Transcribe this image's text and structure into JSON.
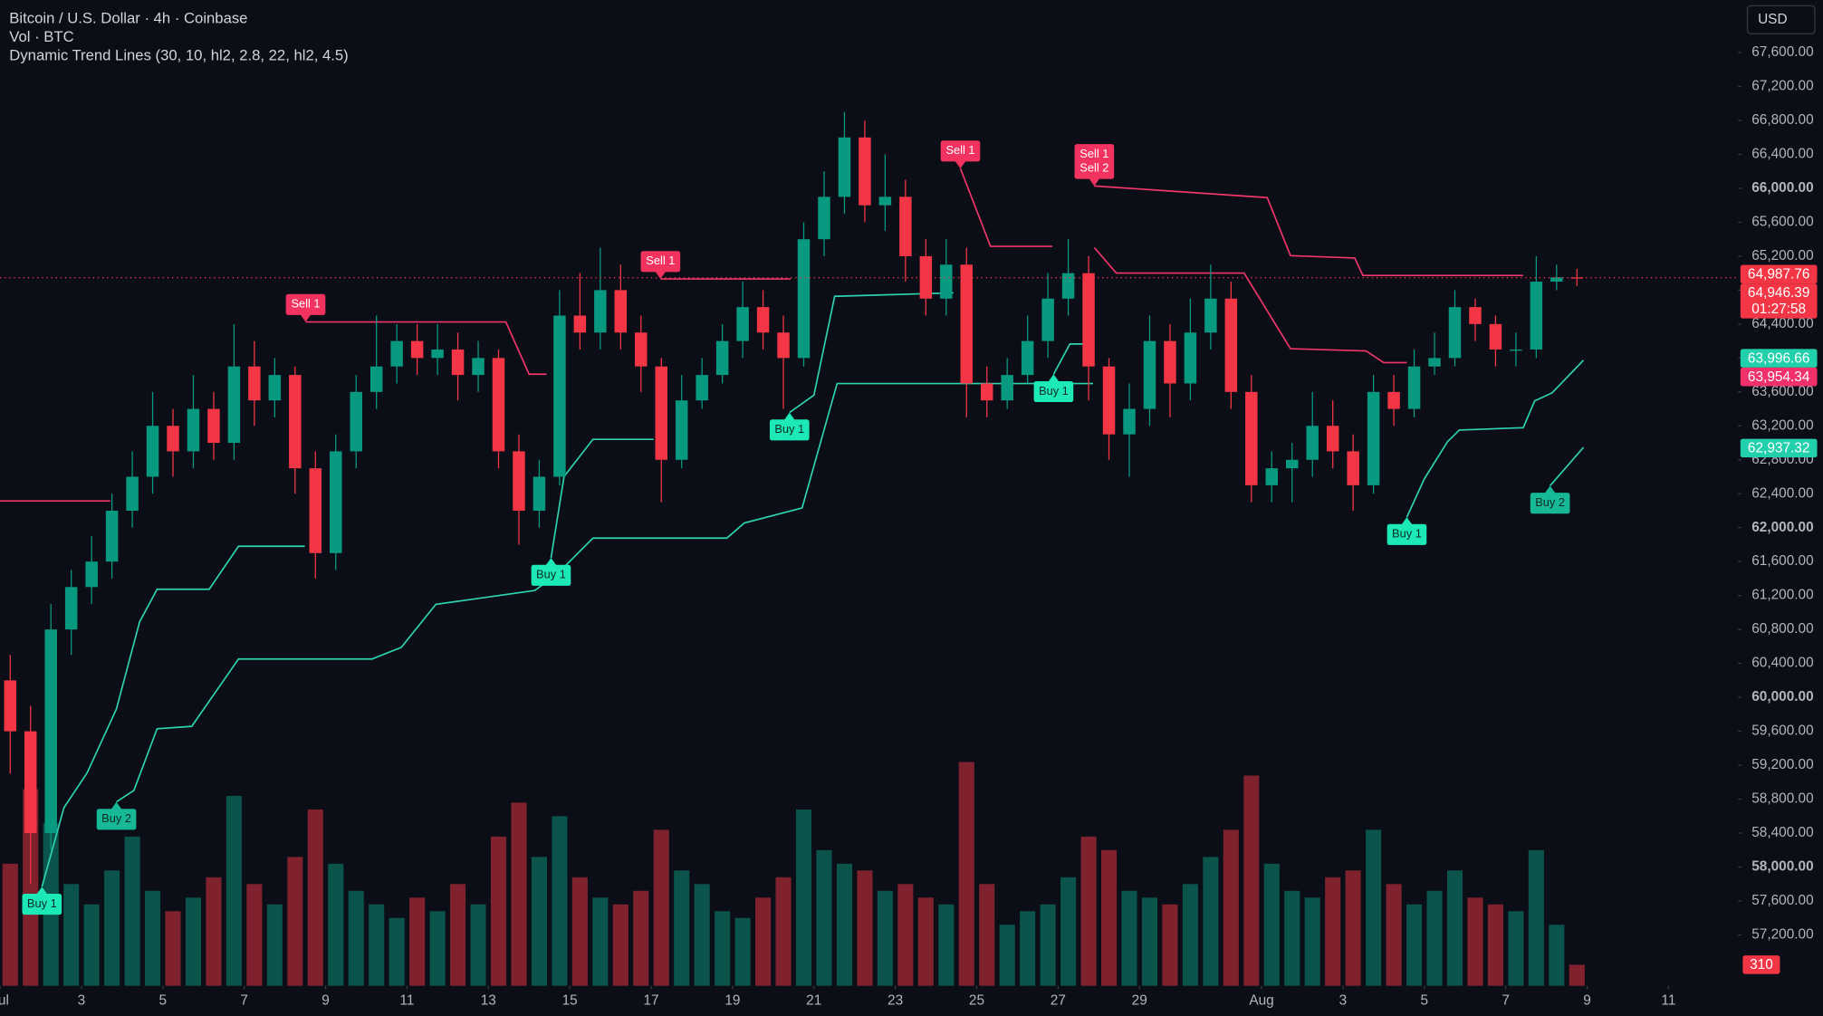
{
  "chart_data": {
    "type": "candlestick",
    "title": "Bitcoin / U.S. Dollar · 4h · Coinbase",
    "subtitle": "Vol · BTC",
    "indicator": "Dynamic Trend Lines (30, 10, hl2, 2.8, 22, hl2, 4.5)",
    "currency": "USD",
    "up_color": "#089981",
    "down_color": "#f23645",
    "xlim": [
      0,
      42.71
    ],
    "ylim": [
      56600,
      68220
    ],
    "xticks": [
      {
        "value": 0,
        "label": "Jul"
      },
      {
        "value": 2,
        "label": "3"
      },
      {
        "value": 4,
        "label": "5"
      },
      {
        "value": 6,
        "label": "7"
      },
      {
        "value": 8,
        "label": "9"
      },
      {
        "value": 10,
        "label": "11"
      },
      {
        "value": 12,
        "label": "13"
      },
      {
        "value": 14,
        "label": "15"
      },
      {
        "value": 16,
        "label": "17"
      },
      {
        "value": 18,
        "label": "19"
      },
      {
        "value": 20,
        "label": "21"
      },
      {
        "value": 22,
        "label": "23"
      },
      {
        "value": 24,
        "label": "25"
      },
      {
        "value": 26,
        "label": "27"
      },
      {
        "value": 28,
        "label": "29"
      },
      {
        "value": 31,
        "label": "Aug"
      },
      {
        "value": 33,
        "label": "3"
      },
      {
        "value": 35,
        "label": "5"
      },
      {
        "value": 37,
        "label": "7"
      },
      {
        "value": 39,
        "label": "9"
      },
      {
        "value": 41,
        "label": "11"
      }
    ],
    "yticks": [
      {
        "value": 57200,
        "label": "57,200.00"
      },
      {
        "value": 57600,
        "label": "57,600.00"
      },
      {
        "value": 58000,
        "label": "58,000.00"
      },
      {
        "value": 58400,
        "label": "58,400.00"
      },
      {
        "value": 58800,
        "label": "58,800.00"
      },
      {
        "value": 59200,
        "label": "59,200.00"
      },
      {
        "value": 59600,
        "label": "59,600.00"
      },
      {
        "value": 60000,
        "label": "60,000.00"
      },
      {
        "value": 60400,
        "label": "60,400.00"
      },
      {
        "value": 60800,
        "label": "60,800.00"
      },
      {
        "value": 61200,
        "label": "61,200.00"
      },
      {
        "value": 61600,
        "label": "61,600.00"
      },
      {
        "value": 62000,
        "label": "62,000.00"
      },
      {
        "value": 62400,
        "label": "62,400.00"
      },
      {
        "value": 62800,
        "label": "62,800.00"
      },
      {
        "value": 63200,
        "label": "63,200.00"
      },
      {
        "value": 63600,
        "label": "63,600.00"
      },
      {
        "value": 64000,
        "label": "64,000.00"
      },
      {
        "value": 64400,
        "label": "64,400.00"
      },
      {
        "value": 64800,
        "label": "64,800.00"
      },
      {
        "value": 65200,
        "label": "65,200.00"
      },
      {
        "value": 65600,
        "label": "65,600.00"
      },
      {
        "value": 66000,
        "label": "66,000.00"
      },
      {
        "value": 66400,
        "label": "66,400.00"
      },
      {
        "value": 66800,
        "label": "66,800.00"
      },
      {
        "value": 67200,
        "label": "67,200.00"
      },
      {
        "value": 67600,
        "label": "67,600.00"
      }
    ],
    "x": [
      0.25,
      0.75,
      1.25,
      1.75,
      2.25,
      2.75,
      3.25,
      3.75,
      4.25,
      4.75,
      5.25,
      5.75,
      6.25,
      6.75,
      7.25,
      7.75,
      8.25,
      8.75,
      9.25,
      9.75,
      10.25,
      10.75,
      11.25,
      11.75,
      12.25,
      12.75,
      13.25,
      13.75,
      14.25,
      14.75,
      15.25,
      15.75,
      16.25,
      16.75,
      17.25,
      17.75,
      18.25,
      18.75,
      19.25,
      19.75,
      20.25,
      20.75,
      21.25,
      21.75,
      22.25,
      22.75,
      23.25,
      23.75,
      24.25,
      24.75,
      25.25,
      25.75,
      26.25,
      26.75,
      27.25,
      27.75,
      28.25,
      28.75,
      29.25,
      29.75,
      30.25,
      30.75,
      31.25,
      31.75,
      32.25,
      32.75,
      33.25,
      33.75,
      34.25,
      34.75,
      35.25,
      35.75,
      36.25,
      36.75,
      37.25,
      37.75,
      38.25,
      38.75
    ],
    "candles": {
      "open": [
        60200,
        59600,
        58400,
        60800,
        61300,
        61600,
        62200,
        62600,
        63200,
        62900,
        63400,
        63000,
        63900,
        63500,
        63800,
        62700,
        61700,
        62900,
        63600,
        63900,
        64200,
        64000,
        64100,
        63800,
        64000,
        62900,
        62200,
        62600,
        64500,
        64300,
        64800,
        64300,
        63900,
        62800,
        63500,
        63800,
        64200,
        64600,
        64300,
        64000,
        65400,
        65900,
        66600,
        65800,
        65900,
        65200,
        64700,
        65100,
        63700,
        63500,
        63800,
        64200,
        64700,
        65000,
        63900,
        63100,
        63400,
        64200,
        63700,
        64300,
        64700,
        63600,
        62500,
        62700,
        62800,
        63200,
        62900,
        62500,
        63600,
        63400,
        63900,
        64000,
        64600,
        64400,
        64100,
        64100,
        64900,
        64950
      ],
      "high": [
        60500,
        59900,
        61100,
        61500,
        61900,
        62400,
        62900,
        63600,
        63400,
        63800,
        63600,
        64400,
        64200,
        64000,
        63900,
        62900,
        63100,
        63800,
        64500,
        64400,
        64400,
        64400,
        64300,
        64200,
        64100,
        63100,
        62800,
        64800,
        65000,
        65300,
        65100,
        64500,
        64000,
        63800,
        64000,
        64400,
        64900,
        64800,
        64500,
        65600,
        66200,
        66900,
        66800,
        66400,
        66100,
        65400,
        65400,
        65300,
        63900,
        64000,
        64500,
        65000,
        65400,
        65200,
        64000,
        63700,
        64500,
        64400,
        64700,
        65100,
        64900,
        63800,
        62900,
        63000,
        63600,
        63500,
        63100,
        63800,
        63800,
        64100,
        64300,
        64800,
        64700,
        64500,
        64300,
        65200,
        65100,
        65050
      ],
      "low": [
        59100,
        57800,
        58200,
        60500,
        61100,
        61400,
        62000,
        62400,
        62600,
        62700,
        62800,
        62800,
        63200,
        63300,
        62400,
        61400,
        61500,
        62700,
        63400,
        63700,
        63800,
        63800,
        63500,
        63600,
        62700,
        61800,
        62000,
        62500,
        64100,
        64100,
        64100,
        63600,
        62300,
        62700,
        63400,
        63700,
        64000,
        64100,
        63400,
        63900,
        65200,
        65700,
        65600,
        65500,
        64900,
        64500,
        64500,
        63300,
        63300,
        63400,
        63700,
        64000,
        64500,
        63500,
        62800,
        62600,
        63200,
        63300,
        63500,
        64100,
        63400,
        62300,
        62300,
        62300,
        62600,
        62700,
        62200,
        62400,
        63200,
        63300,
        63800,
        63900,
        64200,
        63900,
        63900,
        64000,
        64800,
        64850
      ],
      "close": [
        59600,
        58400,
        60800,
        61300,
        61600,
        62200,
        62600,
        63200,
        62900,
        63400,
        63000,
        63900,
        63500,
        63800,
        62700,
        61700,
        62900,
        63600,
        63900,
        64200,
        64000,
        64100,
        63800,
        64000,
        62900,
        62200,
        62600,
        64500,
        64300,
        64800,
        64300,
        63900,
        62800,
        63500,
        63800,
        64200,
        64600,
        64300,
        64000,
        65400,
        65900,
        66600,
        65800,
        65900,
        65200,
        64700,
        65100,
        63700,
        63500,
        63800,
        64200,
        64700,
        65000,
        63900,
        63100,
        63400,
        64200,
        63700,
        64300,
        64700,
        63600,
        62500,
        62700,
        62800,
        63200,
        62900,
        62500,
        63600,
        63400,
        63900,
        64000,
        64600,
        64400,
        64100,
        64100,
        64900,
        64950,
        64946.39
      ]
    },
    "volume": {
      "values": [
        1800,
        2900,
        2400,
        1500,
        1200,
        1700,
        2200,
        1400,
        1100,
        1300,
        1600,
        2800,
        1500,
        1200,
        1900,
        2600,
        1800,
        1400,
        1200,
        1000,
        1300,
        1100,
        1500,
        1200,
        2200,
        2700,
        1900,
        2500,
        1600,
        1300,
        1200,
        1400,
        2300,
        1700,
        1500,
        1100,
        1000,
        1300,
        1600,
        2600,
        2000,
        1800,
        1700,
        1400,
        1500,
        1300,
        1200,
        3300,
        1500,
        900,
        1100,
        1200,
        1600,
        2200,
        2000,
        1400,
        1300,
        1200,
        1500,
        1900,
        2300,
        3100,
        1800,
        1400,
        1300,
        1600,
        1700,
        2300,
        1500,
        1200,
        1400,
        1700,
        1300,
        1200,
        1100,
        2000,
        900,
        310
      ],
      "ylim": [
        0,
        3600
      ],
      "tag": 310
    },
    "resistance": {
      "color": "#f0366b",
      "x": [
        0,
        2.71,
        null,
        7.51,
        12.43,
        13.0,
        13.43,
        null,
        16.23,
        19.43,
        null,
        23.6,
        24.34,
        25.86,
        null,
        26.89,
        31.14,
        31.71,
        33.29,
        33.49,
        37.43,
        null,
        26.89,
        27.43,
        30.57,
        31.71,
        33.57,
        34.0,
        34.57
      ],
      "y": [
        62315,
        62315,
        null,
        64425,
        64425,
        63809,
        63809,
        null,
        64932,
        64932,
        null,
        66234,
        65316,
        65316,
        null,
        66028,
        65891,
        65206,
        65179,
        64973,
        64973,
        null,
        65302,
        65001,
        65001,
        64110,
        64083,
        63946,
        63946
      ]
    },
    "support": {
      "color": "#2ed3b0",
      "x": [
        1.03,
        1.57,
        2.14,
        2.86,
        3.43,
        3.86,
        5.14,
        5.86,
        7.49,
        null,
        2.86,
        3.29,
        3.86,
        4.71,
        5.86,
        9.14,
        9.86,
        10.71,
        13.14,
        13.66,
        14.57,
        17.86,
        18.29,
        19.71,
        20.57,
        26.0,
        26.86,
        null,
        13.54,
        13.86,
        14.57,
        16.06,
        null,
        19.4,
        20.0,
        20.51,
        23.43,
        null,
        25.89,
        26.29,
        26.71,
        null,
        34.57,
        35.0,
        35.57,
        35.86,
        37.43,
        37.71,
        38.14,
        38.91,
        null,
        38.09,
        38.91
      ],
      "y": [
        57767,
        58699,
        59110,
        59863,
        60890,
        61274,
        61274,
        61781,
        61781,
        null,
        58767,
        58904,
        59630,
        59658,
        60452,
        60452,
        60589,
        61096,
        61260,
        61439,
        61877,
        61877,
        62055,
        62233,
        63699,
        63699,
        63699,
        null,
        61644,
        62603,
        63041,
        63041,
        null,
        63357,
        63562,
        64727,
        64768,
        null,
        63809,
        64165,
        64165,
        null,
        62124,
        62576,
        63014,
        63151,
        63178,
        63494,
        63589,
        63973,
        null,
        62494,
        62946
      ]
    },
    "signals": [
      {
        "kind": "sell",
        "x": 7.51,
        "y": 64425,
        "labels": [
          "Sell 1"
        ],
        "color": "#f2335f"
      },
      {
        "kind": "sell",
        "x": 16.23,
        "y": 64932,
        "labels": [
          "Sell 1"
        ],
        "color": "#f2335f"
      },
      {
        "kind": "sell",
        "x": 23.6,
        "y": 66234,
        "labels": [
          "Sell 1"
        ],
        "color": "#f2335f"
      },
      {
        "kind": "sell",
        "x": 26.89,
        "y": 66028,
        "labels": [
          "Sell 1",
          "Sell 2"
        ],
        "color": "#f2335f"
      },
      {
        "kind": "buy",
        "x": 1.03,
        "y": 57767,
        "labels": [
          "Buy 1"
        ],
        "color": "#1de9b6"
      },
      {
        "kind": "buy",
        "x": 2.86,
        "y": 58767,
        "labels": [
          "Buy 2"
        ],
        "color": "#16b896"
      },
      {
        "kind": "buy",
        "x": 13.54,
        "y": 61644,
        "labels": [
          "Buy 1"
        ],
        "color": "#1de9b6"
      },
      {
        "kind": "buy",
        "x": 19.4,
        "y": 63357,
        "labels": [
          "Buy 1"
        ],
        "color": "#1de9b6"
      },
      {
        "kind": "buy",
        "x": 25.89,
        "y": 63809,
        "labels": [
          "Buy 1"
        ],
        "color": "#1de9b6"
      },
      {
        "kind": "buy",
        "x": 34.57,
        "y": 62124,
        "labels": [
          "Buy 1"
        ],
        "color": "#1de9b6"
      },
      {
        "kind": "buy",
        "x": 38.09,
        "y": 62494,
        "labels": [
          "Buy 2"
        ],
        "color": "#16b896"
      }
    ],
    "price_tags": [
      {
        "value": 64987.76,
        "label": "64,987.76",
        "color": "#f23645"
      },
      {
        "value": 64946.39,
        "label": "64,946.39",
        "color": "#f23645",
        "countdown": "01:27:58"
      },
      {
        "value": 63996.66,
        "label": "63,996.66",
        "color": "#22d1ac"
      },
      {
        "value": 63954.34,
        "label": "63,954.34",
        "color": "#f0306a"
      },
      {
        "value": 62937.32,
        "label": "62,937.32",
        "color": "#22d1ac"
      }
    ]
  }
}
